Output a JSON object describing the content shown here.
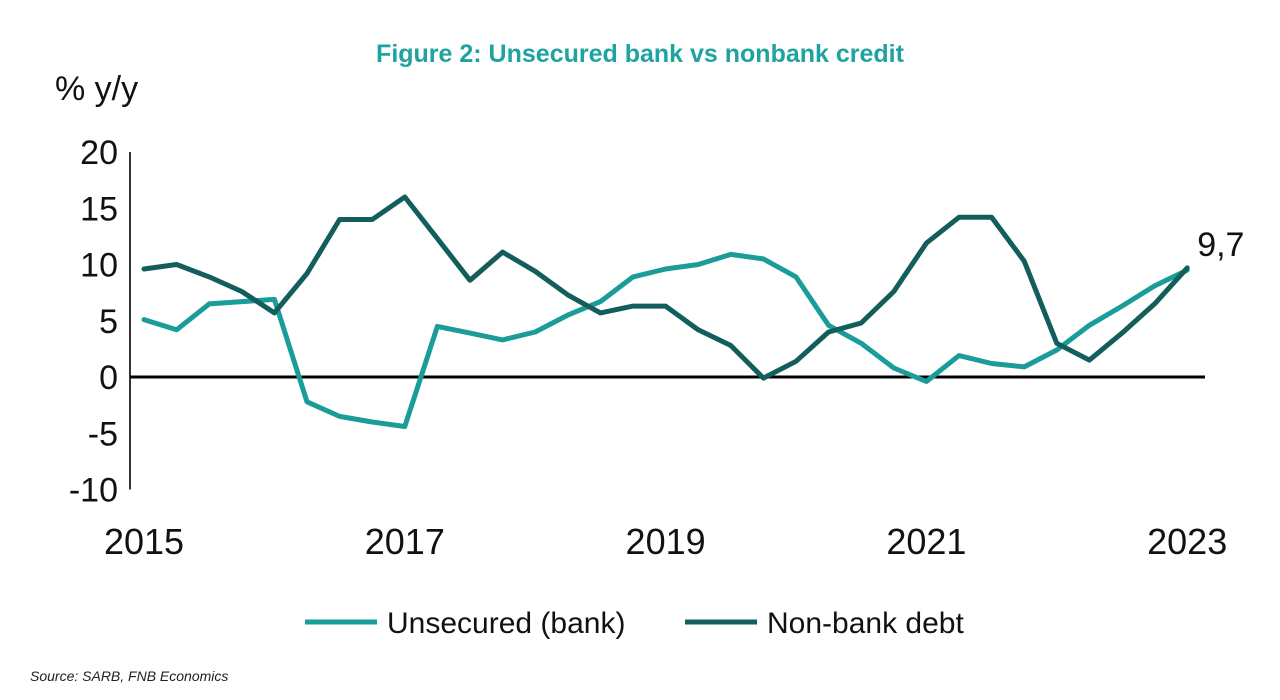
{
  "chart_data": {
    "type": "line",
    "title": "Figure 2: Unsecured bank vs nonbank credit",
    "ylabel": "% y/y",
    "xlabel": "",
    "ylim": [
      -10,
      20
    ],
    "yticks": [
      "20",
      "15",
      "10",
      "5",
      "0",
      "-5",
      "-10"
    ],
    "ytick_values": [
      20,
      15,
      10,
      5,
      0,
      -5,
      -10
    ],
    "xticks": [
      "2015",
      "2017",
      "2019",
      "2021",
      "2023"
    ],
    "xtick_values": [
      2015,
      2017,
      2019,
      2021,
      2023
    ],
    "x_start": 2015,
    "x_step": 0.25,
    "series": [
      {
        "name": "Unsecured (bank)",
        "color": "#1a9c9a",
        "values": [
          5.1,
          4.2,
          6.5,
          6.7,
          6.9,
          -2.2,
          -3.5,
          -4.0,
          -4.4,
          4.5,
          3.9,
          3.3,
          4.0,
          5.5,
          6.7,
          8.9,
          9.6,
          10.0,
          10.9,
          10.5,
          8.9,
          4.6,
          3.0,
          0.8,
          -0.4,
          1.9,
          1.2,
          0.9,
          2.4,
          4.6,
          6.3,
          8.1,
          9.5
        ]
      },
      {
        "name": "Non-bank debt",
        "color": "#135e5c",
        "values": [
          9.6,
          10.0,
          8.9,
          7.6,
          5.7,
          9.2,
          14.0,
          14.0,
          16.0,
          12.3,
          8.6,
          11.1,
          9.4,
          7.3,
          5.7,
          6.3,
          6.3,
          4.2,
          2.8,
          -0.1,
          1.4,
          4.0,
          4.8,
          7.6,
          11.9,
          14.2,
          14.2,
          10.3,
          3.0,
          1.5,
          3.9,
          6.5,
          9.7
        ]
      }
    ],
    "annotation": "9,7",
    "legend": "bottom"
  },
  "source": "Source: SARB, FNB Economics"
}
